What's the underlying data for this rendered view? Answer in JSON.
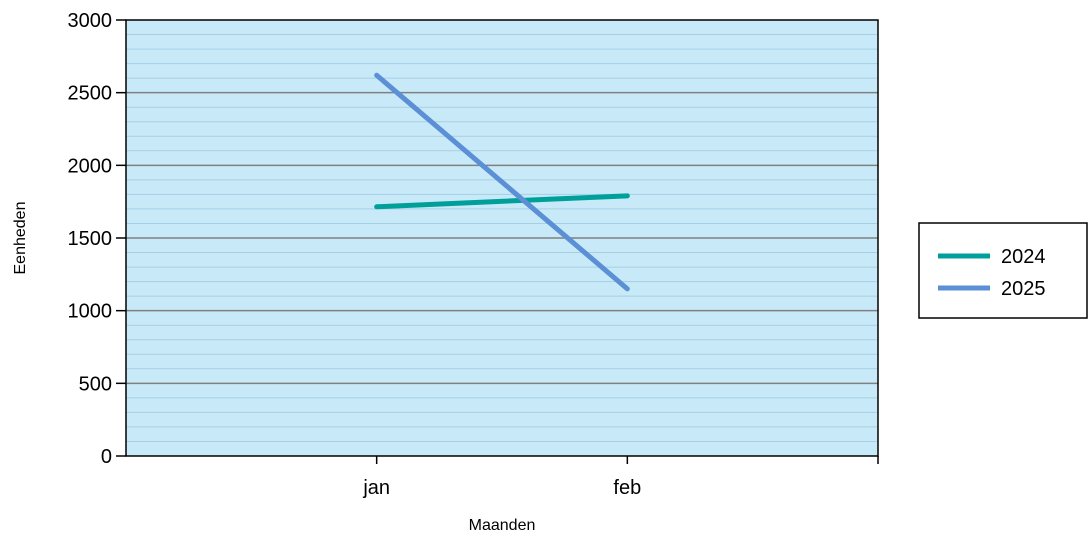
{
  "chart_data": {
    "type": "line",
    "categories": [
      "jan",
      "feb"
    ],
    "series": [
      {
        "name": "2024",
        "values": [
          1715,
          1790
        ],
        "color": "#00a09a"
      },
      {
        "name": "2025",
        "values": [
          2620,
          1150
        ],
        "color": "#5b8fd6"
      }
    ],
    "xlabel": "Maanden",
    "ylabel": "Eenheden",
    "ylim": [
      0,
      3000
    ],
    "yticks": [
      0,
      500,
      1000,
      1500,
      2000,
      2500,
      3000
    ],
    "grid": true,
    "plot_background": "#c8eaf8",
    "legend_position": "right"
  }
}
